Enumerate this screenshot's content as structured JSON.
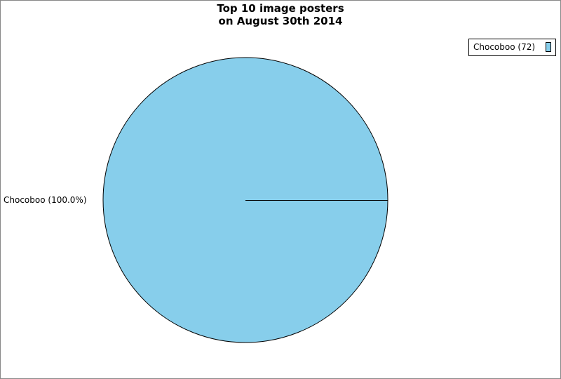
{
  "chart_data": {
    "type": "pie",
    "title_lines": [
      "Top 10 image posters",
      "on August 30th 2014"
    ],
    "slices": [
      {
        "label": "Chocoboo",
        "value": 72,
        "percent_label": "Chocoboo (100.0%)",
        "legend_label": "Chocoboo (72)",
        "color": "#87ceeb"
      }
    ],
    "legend_placement": "top-right"
  }
}
